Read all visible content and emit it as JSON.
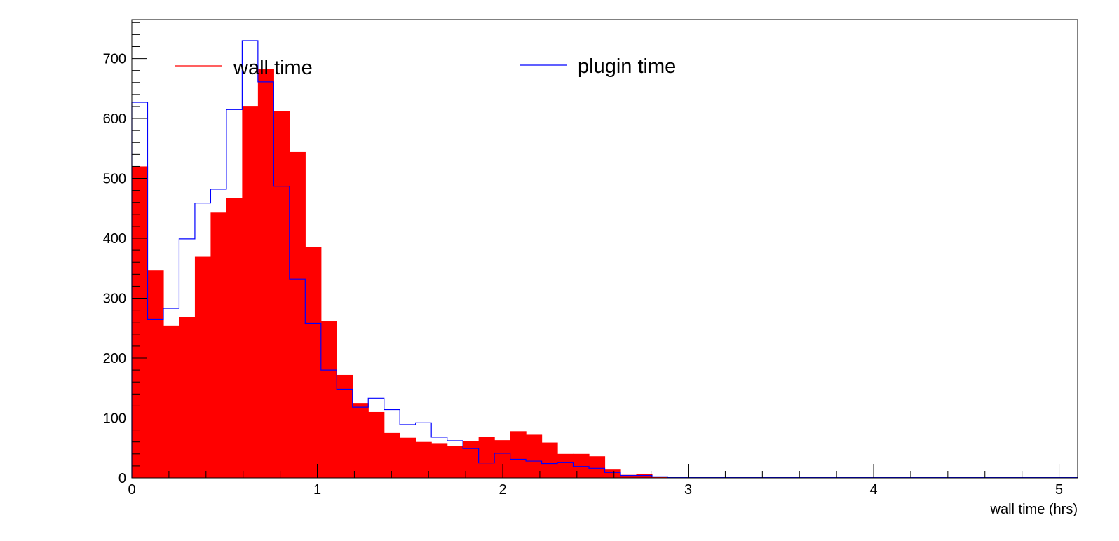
{
  "chart_data": {
    "type": "bar",
    "title": "",
    "xlabel": "wall time (hrs)",
    "ylabel": "",
    "xlim": [
      0,
      5.1
    ],
    "ylim": [
      0,
      765
    ],
    "bin_width": 0.085,
    "grid": false,
    "x_ticks": [
      0,
      1,
      2,
      3,
      4,
      5
    ],
    "y_ticks": [
      0,
      100,
      200,
      300,
      400,
      500,
      600,
      700
    ],
    "legend_position": "top",
    "series": [
      {
        "name": "wall time",
        "style": "filled",
        "color": "#ff0000",
        "values": [
          520,
          346,
          254,
          268,
          369,
          443,
          467,
          621,
          683,
          612,
          544,
          385,
          262,
          172,
          125,
          110,
          75,
          67,
          60,
          58,
          53,
          61,
          68,
          63,
          78,
          72,
          59,
          40,
          40,
          36,
          15,
          5,
          6,
          2,
          1,
          1,
          1,
          2,
          1,
          1,
          1,
          1,
          1,
          1,
          1,
          1,
          1,
          1,
          1,
          1,
          1,
          1,
          1,
          1,
          1,
          1,
          1,
          1,
          1,
          1
        ]
      },
      {
        "name": "plugin time",
        "style": "step",
        "color": "#0000ff",
        "values": [
          627,
          265,
          283,
          399,
          459,
          482,
          615,
          730,
          661,
          487,
          332,
          258,
          180,
          148,
          118,
          133,
          114,
          89,
          92,
          68,
          62,
          49,
          25,
          41,
          31,
          28,
          24,
          26,
          19,
          16,
          9,
          4,
          4,
          2,
          1,
          1,
          1,
          1,
          1,
          1,
          1,
          1,
          1,
          1,
          1,
          1,
          1,
          1,
          1,
          1,
          1,
          1,
          1,
          1,
          1,
          1,
          1,
          1,
          1,
          1
        ]
      }
    ]
  }
}
